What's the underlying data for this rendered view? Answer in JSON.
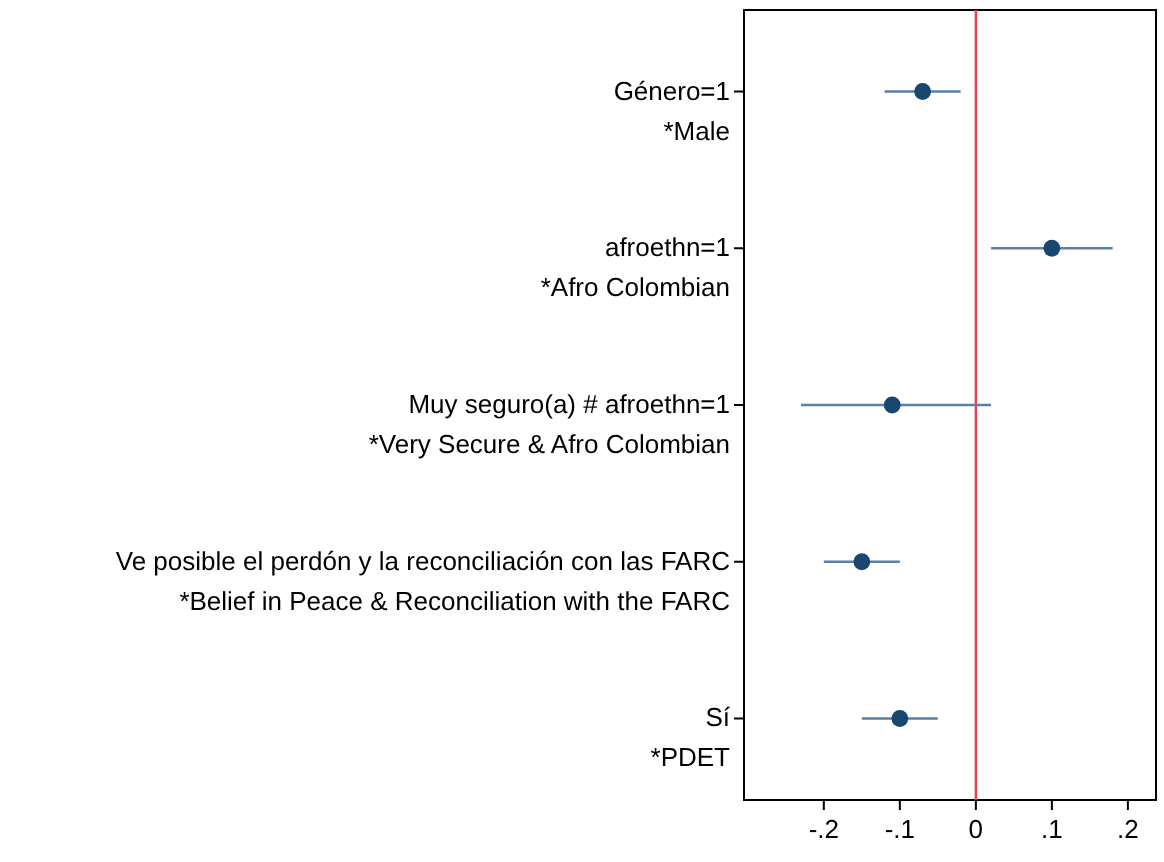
{
  "chart_data": {
    "type": "scatter",
    "orientation": "horizontal",
    "categories": [
      "Género=1\n*Male",
      "afroethn=1\n*Afro Colombian",
      "Muy seguro(a) # afroethn=1\n*Very Secure & Afro Colombian",
      "Ve posible el perdón y la reconciliación con las FARC\n*Belief in Peace & Reconciliation with the FARC",
      "Sí\n*PDET"
    ],
    "series": [
      {
        "color": "#1a476f",
        "values": [
          -0.07,
          0.1,
          -0.11,
          -0.15,
          -0.1
        ],
        "errors": [
          [
            -0.12,
            -0.02
          ],
          [
            0.02,
            0.18
          ],
          [
            -0.23,
            0.02
          ],
          [
            -0.2,
            -0.1
          ],
          [
            -0.15,
            -0.05
          ]
        ]
      }
    ],
    "xlim": [
      -0.305,
      0.237
    ],
    "xticks": [
      {
        "value": -0.2,
        "label": "-.2"
      },
      {
        "value": -0.1,
        "label": "-.1"
      },
      0,
      {
        "value": 0.1,
        "label": ".1"
      },
      {
        "value": 0.2,
        "label": ".2"
      }
    ],
    "ref_lines": [
      {
        "axis": "x",
        "value": 0,
        "color": "#e8414f"
      }
    ],
    "marker": "circle",
    "grid": false
  }
}
